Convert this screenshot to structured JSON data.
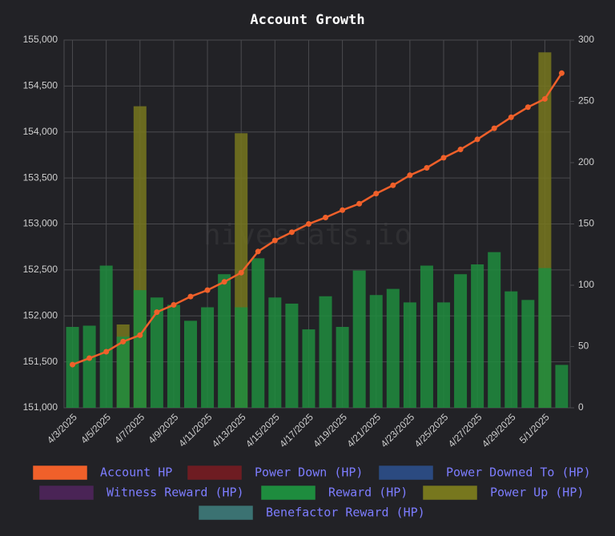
{
  "chart_data": {
    "type": "bar",
    "title": "Account Growth",
    "watermark": "hivestats.io",
    "categories": [
      "4/3/2025",
      null,
      "4/5/2025",
      null,
      "4/7/2025",
      null,
      "4/9/2025",
      null,
      "4/11/2025",
      null,
      "4/13/2025",
      null,
      "4/15/2025",
      null,
      "4/17/2025",
      null,
      "4/19/2025",
      null,
      "4/21/2025",
      null,
      "4/23/2025",
      null,
      "4/25/2025",
      null,
      "4/27/2025",
      null,
      "4/29/2025",
      null,
      "5/1/2025",
      null
    ],
    "ylim": [
      151000,
      155000
    ],
    "yticks": [
      {
        "value": 151000,
        "label": "151,000"
      },
      {
        "value": 151500,
        "label": "151,500"
      },
      {
        "value": 152000,
        "label": "152,000"
      },
      {
        "value": 152500,
        "label": "152,500"
      },
      {
        "value": 153000,
        "label": "153,000"
      },
      {
        "value": 153500,
        "label": "153,500"
      },
      {
        "value": 154000,
        "label": "154,000"
      },
      {
        "value": 154500,
        "label": "154,500"
      },
      {
        "value": 155000,
        "label": "155,000"
      }
    ],
    "y2lim": [
      0,
      300
    ],
    "y2ticks": [
      0,
      50,
      100,
      150,
      200,
      250,
      300
    ],
    "grid": true,
    "series": [
      {
        "name": "Account HP",
        "type": "line",
        "axis": "y",
        "color": "#f0602a",
        "values": [
          151470,
          151540,
          151610,
          151720,
          151790,
          152040,
          152120,
          152210,
          152280,
          152370,
          152470,
          152700,
          152820,
          152910,
          153000,
          153070,
          153150,
          153220,
          153330,
          153420,
          153530,
          153610,
          153720,
          153810,
          153920,
          154040,
          154160,
          154270,
          154360,
          154640
        ]
      },
      {
        "name": "Power Down (HP)",
        "type": "bar",
        "axis": "y2",
        "color": "#6e1c22",
        "values": [
          null,
          null,
          null,
          null,
          null,
          null,
          null,
          null,
          null,
          null,
          null,
          null,
          null,
          null,
          null,
          null,
          null,
          null,
          null,
          null,
          null,
          null,
          null,
          null,
          null,
          null,
          null,
          null,
          null,
          null
        ]
      },
      {
        "name": "Power Downed To (HP)",
        "type": "bar",
        "axis": "y2",
        "color": "#2b4a80",
        "values": [
          null,
          null,
          null,
          null,
          null,
          null,
          null,
          null,
          null,
          null,
          null,
          null,
          null,
          null,
          null,
          null,
          null,
          null,
          null,
          null,
          null,
          null,
          null,
          null,
          null,
          null,
          null,
          null,
          null,
          null
        ]
      },
      {
        "name": "Witness Reward (HP)",
        "type": "bar",
        "axis": "y2",
        "color": "#4a2456",
        "values": [
          null,
          null,
          null,
          null,
          null,
          null,
          null,
          null,
          null,
          null,
          null,
          null,
          null,
          null,
          null,
          null,
          null,
          null,
          null,
          null,
          null,
          null,
          null,
          null,
          null,
          null,
          null,
          null,
          null,
          null
        ]
      },
      {
        "name": "Power Up (HP)",
        "type": "bar",
        "axis": "y2",
        "color": "#77771e",
        "values": [
          null,
          null,
          null,
          68,
          246,
          null,
          null,
          null,
          null,
          null,
          224,
          null,
          null,
          null,
          null,
          null,
          null,
          null,
          null,
          null,
          null,
          null,
          null,
          null,
          null,
          null,
          null,
          null,
          290,
          null
        ]
      },
      {
        "name": "Reward (HP)",
        "type": "bar",
        "axis": "y2",
        "color": "#1e8c3e",
        "values": [
          66,
          67,
          116,
          58,
          96,
          90,
          84,
          71,
          82,
          109,
          82,
          122,
          90,
          85,
          64,
          91,
          66,
          112,
          92,
          97,
          86,
          116,
          86,
          109,
          117,
          127,
          95,
          88,
          114,
          35
        ]
      },
      {
        "name": "Benefactor Reward (HP)",
        "type": "bar",
        "axis": "y2",
        "color": "#3b7272",
        "values": [
          null,
          null,
          null,
          null,
          null,
          null,
          null,
          null,
          null,
          null,
          null,
          null,
          null,
          null,
          null,
          null,
          null,
          null,
          null,
          null,
          null,
          null,
          null,
          null,
          null,
          null,
          null,
          null,
          null,
          null
        ]
      }
    ]
  }
}
